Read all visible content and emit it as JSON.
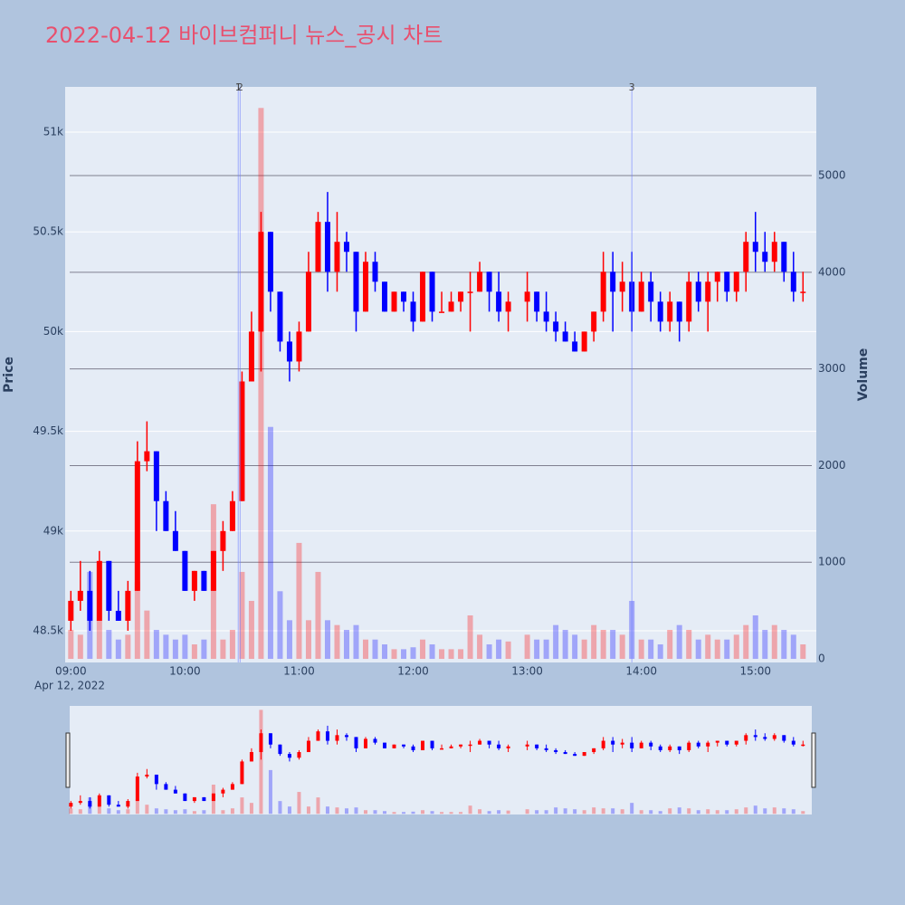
{
  "chart_data": {
    "type": "candlestick",
    "title": "2022-04-12 바이브컴퍼니 뉴스_공시 차트",
    "ylabel": "Price",
    "y2label": "Volume",
    "date_label": "Apr 12, 2022",
    "increasing_color": "#ff0000",
    "decreasing_color": "#0000ff",
    "x": [
      "09:00",
      "09:05",
      "09:10",
      "09:15",
      "09:20",
      "09:25",
      "09:30",
      "09:35",
      "09:40",
      "09:45",
      "09:50",
      "09:55",
      "10:00",
      "10:05",
      "10:10",
      "10:15",
      "10:20",
      "10:25",
      "10:30",
      "10:35",
      "10:40",
      "10:45",
      "10:50",
      "10:55",
      "11:00",
      "11:05",
      "11:10",
      "11:15",
      "11:20",
      "11:25",
      "11:30",
      "11:35",
      "11:40",
      "11:45",
      "11:50",
      "11:55",
      "12:00",
      "12:05",
      "12:10",
      "12:15",
      "12:20",
      "12:25",
      "12:30",
      "12:35",
      "12:40",
      "12:45",
      "12:50",
      "13:00",
      "13:05",
      "13:10",
      "13:15",
      "13:20",
      "13:25",
      "13:30",
      "13:35",
      "13:40",
      "13:45",
      "13:50",
      "13:55",
      "14:00",
      "14:05",
      "14:10",
      "14:15",
      "14:20",
      "14:25",
      "14:30",
      "14:35",
      "14:40",
      "14:45",
      "14:50",
      "14:55",
      "15:00",
      "15:05",
      "15:10",
      "15:15",
      "15:20",
      "15:25"
    ],
    "open": [
      48550,
      48650,
      48700,
      48550,
      48850,
      48600,
      48550,
      48700,
      49350,
      49400,
      49150,
      49000,
      48900,
      48700,
      48800,
      48700,
      48900,
      49000,
      49150,
      49750,
      50000,
      50500,
      50200,
      49950,
      49850,
      50000,
      50300,
      50550,
      50300,
      50450,
      50400,
      50100,
      50350,
      50250,
      50100,
      50200,
      50150,
      50050,
      50300,
      50100,
      50100,
      50150,
      50200,
      50200,
      50300,
      50200,
      50100,
      50150,
      50200,
      50100,
      50050,
      50000,
      49950,
      49900,
      50000,
      50100,
      50300,
      50200,
      50250,
      50100,
      50250,
      50150,
      50050,
      50150,
      50050,
      50250,
      50150,
      50250,
      50300,
      50200,
      50300,
      50450,
      50400,
      50350,
      50450,
      50300,
      50200
    ],
    "high": [
      48700,
      48850,
      48800,
      48900,
      48850,
      48700,
      48750,
      49450,
      49550,
      49400,
      49200,
      49100,
      48900,
      48800,
      48800,
      48900,
      49050,
      49200,
      49800,
      50100,
      50600,
      50500,
      50200,
      50000,
      50050,
      50400,
      50600,
      50700,
      50600,
      50500,
      50400,
      50400,
      50400,
      50250,
      50200,
      50200,
      50200,
      50300,
      50300,
      50200,
      50200,
      50200,
      50300,
      50350,
      50300,
      50300,
      50200,
      50300,
      50200,
      50200,
      50100,
      50050,
      50000,
      50000,
      50100,
      50400,
      50400,
      50350,
      50400,
      50300,
      50300,
      50200,
      50200,
      50150,
      50300,
      50300,
      50300,
      50300,
      50300,
      50300,
      50500,
      50600,
      50500,
      50500,
      50450,
      50400,
      50300
    ],
    "low": [
      48500,
      48600,
      48500,
      48550,
      48550,
      48550,
      48500,
      48700,
      49300,
      49000,
      49000,
      48900,
      48700,
      48650,
      48700,
      48700,
      48800,
      49000,
      49150,
      49750,
      49800,
      50100,
      49900,
      49750,
      49800,
      50000,
      50300,
      50200,
      50200,
      50300,
      50000,
      50100,
      50200,
      50100,
      50100,
      50100,
      50000,
      50050,
      50050,
      50100,
      50100,
      50100,
      50000,
      50200,
      50100,
      50050,
      50000,
      50050,
      50050,
      50000,
      49950,
      49950,
      49900,
      49900,
      49950,
      50050,
      50000,
      50100,
      50000,
      50100,
      50050,
      50000,
      50000,
      49950,
      50000,
      50100,
      50000,
      50150,
      50150,
      50150,
      50200,
      50300,
      50300,
      50300,
      50250,
      50150,
      50150
    ],
    "close": [
      48650,
      48700,
      48550,
      48850,
      48600,
      48550,
      48700,
      49350,
      49400,
      49150,
      49000,
      48900,
      48700,
      48800,
      48700,
      48900,
      49000,
      49150,
      49750,
      50000,
      50500,
      50200,
      49950,
      49850,
      50000,
      50300,
      50550,
      50300,
      50450,
      50400,
      50100,
      50350,
      50250,
      50100,
      50200,
      50150,
      50050,
      50300,
      50100,
      50100,
      50150,
      50200,
      50200,
      50300,
      50200,
      50100,
      50150,
      50200,
      50100,
      50050,
      50000,
      49950,
      49900,
      50000,
      50100,
      50300,
      50200,
      50250,
      50100,
      50250,
      50150,
      50050,
      50150,
      50050,
      50250,
      50150,
      50250,
      50300,
      50200,
      50300,
      50450,
      50400,
      50350,
      50450,
      50300,
      50200,
      50200
    ],
    "volume": [
      300,
      250,
      900,
      400,
      300,
      200,
      250,
      800,
      500,
      300,
      250,
      200,
      250,
      150,
      200,
      1600,
      200,
      300,
      900,
      600,
      5700,
      2400,
      700,
      400,
      1200,
      400,
      900,
      400,
      350,
      300,
      350,
      200,
      200,
      150,
      100,
      100,
      120,
      200,
      150,
      100,
      100,
      100,
      450,
      250,
      150,
      200,
      180,
      250,
      200,
      200,
      350,
      300,
      250,
      200,
      350,
      300,
      300,
      250,
      600,
      200,
      200,
      150,
      300,
      350,
      300,
      200,
      250,
      200,
      200,
      250,
      350,
      450,
      300,
      350,
      300,
      250,
      150
    ],
    "xlim": [
      "08:57",
      "15:32"
    ],
    "xticks": [
      "09:00",
      "10:00",
      "11:00",
      "12:00",
      "13:00",
      "14:00",
      "15:00"
    ],
    "ylim": [
      48341,
      51227
    ],
    "yticks": [
      {
        "value": 48500,
        "label": "48.5k"
      },
      {
        "value": 49000,
        "label": "49k"
      },
      {
        "value": 49500,
        "label": "49.5k"
      },
      {
        "value": 50000,
        "label": "50k"
      },
      {
        "value": 50500,
        "label": "50.5k"
      },
      {
        "value": 51000,
        "label": "51k"
      }
    ],
    "y2lim": [
      -37,
      5918
    ],
    "y2ticks": [
      0,
      1000,
      2000,
      3000,
      4000,
      5000
    ],
    "annotations": [
      {
        "x": "10:28",
        "label": "1"
      },
      {
        "x": "10:29",
        "label": "2"
      },
      {
        "x": "13:55",
        "label": "3"
      }
    ],
    "rangeslider": true
  }
}
